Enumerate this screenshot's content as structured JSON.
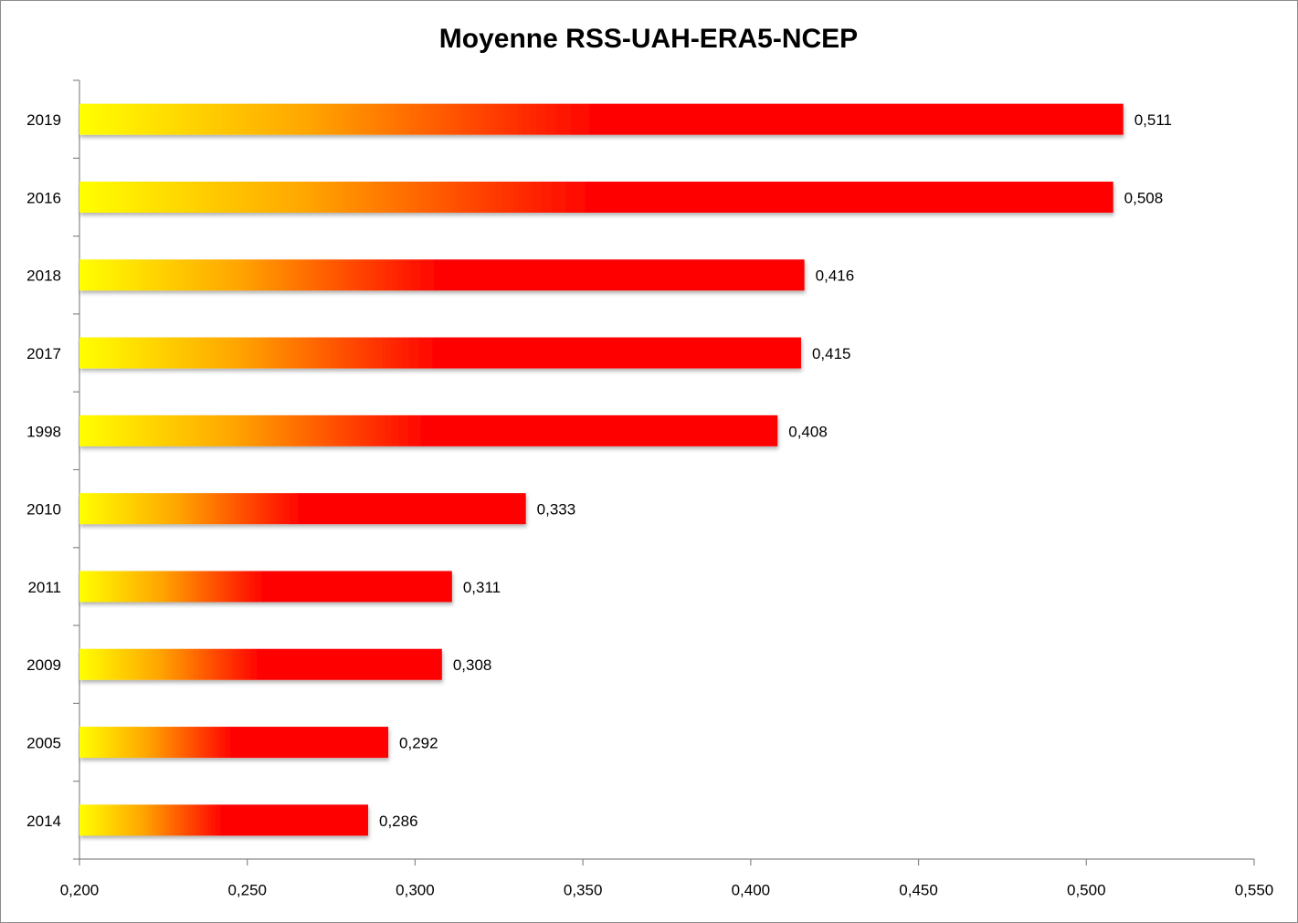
{
  "chart_data": {
    "type": "barh",
    "title": "Moyenne RSS-UAH-ERA5-NCEP",
    "categories": [
      "2019",
      "2016",
      "2018",
      "2017",
      "1998",
      "2010",
      "2011",
      "2009",
      "2005",
      "2014"
    ],
    "values": [
      0.511,
      0.508,
      0.416,
      0.415,
      0.408,
      0.333,
      0.311,
      0.308,
      0.292,
      0.286
    ],
    "value_labels": [
      "0,511",
      "0,508",
      "0,416",
      "0,415",
      "0,408",
      "0,333",
      "0,311",
      "0,308",
      "0,292",
      "0,286"
    ],
    "color": "#ff0000",
    "xlim": [
      0.2,
      0.55
    ],
    "xticks": [
      {
        "value": 0.2,
        "label": "0,200"
      },
      {
        "value": 0.25,
        "label": "0,250"
      },
      {
        "value": 0.3,
        "label": "0,300"
      },
      {
        "value": 0.35,
        "label": "0,350"
      },
      {
        "value": 0.4,
        "label": "0,400"
      },
      {
        "value": 0.45,
        "label": "0,450"
      },
      {
        "value": 0.5,
        "label": "0,500"
      },
      {
        "value": 0.55,
        "label": "0,550"
      }
    ]
  }
}
